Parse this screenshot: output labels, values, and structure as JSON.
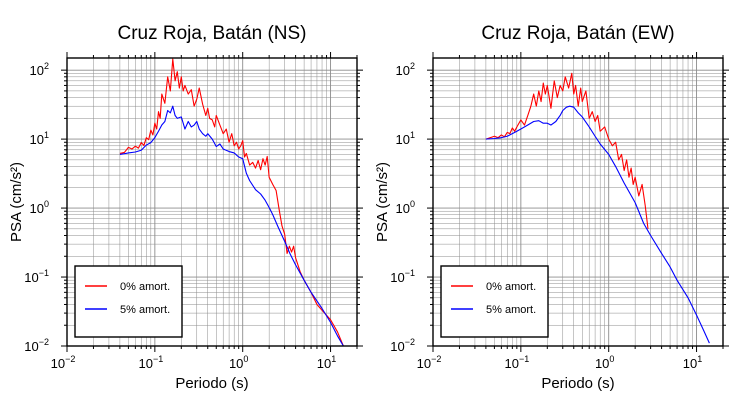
{
  "chart_data": [
    {
      "type": "line",
      "title": "Cruz Roja, Batán (NS)",
      "xlabel": "Periodo (s)",
      "ylabel": "PSA (cm/s²)",
      "xscale": "log",
      "yscale": "log",
      "xlim": [
        0.01,
        20
      ],
      "ylim": [
        0.01,
        150
      ],
      "grid": true,
      "legend_position": "bottom-left",
      "xticks": [
        {
          "base": "10",
          "exp": "−2"
        },
        {
          "base": "10",
          "exp": "−1"
        },
        {
          "base": "10",
          "exp": "0"
        },
        {
          "base": "10",
          "exp": "1"
        }
      ],
      "yticks": [
        {
          "base": "10",
          "exp": "2"
        },
        {
          "base": "10",
          "exp": "1"
        },
        {
          "base": "10",
          "exp": "0"
        },
        {
          "base": "10",
          "exp": "−1"
        },
        {
          "base": "10",
          "exp": "−2"
        }
      ],
      "series": [
        {
          "name": "0% amort.",
          "color": "#ff0000",
          "points": [
            [
              0.04,
              6.2
            ],
            [
              0.045,
              6.4
            ],
            [
              0.05,
              7.6
            ],
            [
              0.055,
              7.2
            ],
            [
              0.06,
              7.9
            ],
            [
              0.065,
              7.4
            ],
            [
              0.07,
              8.9
            ],
            [
              0.075,
              8.1
            ],
            [
              0.08,
              10.5
            ],
            [
              0.085,
              9.8
            ],
            [
              0.09,
              13.5
            ],
            [
              0.095,
              11.5
            ],
            [
              0.1,
              17
            ],
            [
              0.105,
              14
            ],
            [
              0.11,
              25
            ],
            [
              0.115,
              20
            ],
            [
              0.12,
              45
            ],
            [
              0.13,
              33
            ],
            [
              0.14,
              80
            ],
            [
              0.15,
              50
            ],
            [
              0.16,
              145
            ],
            [
              0.17,
              70
            ],
            [
              0.18,
              95
            ],
            [
              0.19,
              55
            ],
            [
              0.2,
              80
            ],
            [
              0.21,
              50
            ],
            [
              0.22,
              60
            ],
            [
              0.24,
              45
            ],
            [
              0.26,
              52
            ],
            [
              0.28,
              30
            ],
            [
              0.3,
              38
            ],
            [
              0.32,
              55
            ],
            [
              0.35,
              32
            ],
            [
              0.38,
              22
            ],
            [
              0.4,
              28
            ],
            [
              0.42,
              20
            ],
            [
              0.45,
              19
            ],
            [
              0.48,
              15
            ],
            [
              0.5,
              22
            ],
            [
              0.55,
              16
            ],
            [
              0.6,
              12
            ],
            [
              0.65,
              14
            ],
            [
              0.7,
              9
            ],
            [
              0.75,
              12
            ],
            [
              0.8,
              8
            ],
            [
              0.85,
              9
            ],
            [
              0.9,
              7.2
            ],
            [
              0.95,
              8
            ],
            [
              1.0,
              9.5
            ],
            [
              1.05,
              5.5
            ],
            [
              1.1,
              6.2
            ],
            [
              1.2,
              4.2
            ],
            [
              1.3,
              4.6
            ],
            [
              1.4,
              3.8
            ],
            [
              1.5,
              4.9
            ],
            [
              1.6,
              3.6
            ],
            [
              1.7,
              5.2
            ],
            [
              1.8,
              4.2
            ],
            [
              1.9,
              5.6
            ],
            [
              2.0,
              2.8
            ],
            [
              2.2,
              2.2
            ],
            [
              2.4,
              1.8
            ],
            [
              2.6,
              0.95
            ],
            [
              2.8,
              0.55
            ],
            [
              3.0,
              0.42
            ],
            [
              3.2,
              0.22
            ],
            [
              3.4,
              0.28
            ],
            [
              3.6,
              0.23
            ],
            [
              3.8,
              0.28
            ],
            [
              4.0,
              0.19
            ],
            [
              4.5,
              0.12
            ],
            [
              5.0,
              0.09
            ],
            [
              6.0,
              0.06
            ],
            [
              7.0,
              0.04
            ],
            [
              8.0,
              0.033
            ],
            [
              10.0,
              0.024
            ],
            [
              12.0,
              0.016
            ],
            [
              14.0,
              0.01
            ]
          ]
        },
        {
          "name": "5% amort.",
          "color": "#0000ff",
          "points": [
            [
              0.04,
              6.0
            ],
            [
              0.05,
              6.3
            ],
            [
              0.06,
              6.5
            ],
            [
              0.07,
              6.9
            ],
            [
              0.08,
              8.2
            ],
            [
              0.09,
              8.9
            ],
            [
              0.1,
              10.5
            ],
            [
              0.11,
              13
            ],
            [
              0.12,
              16
            ],
            [
              0.13,
              18
            ],
            [
              0.14,
              26
            ],
            [
              0.15,
              24
            ],
            [
              0.16,
              30
            ],
            [
              0.17,
              22
            ],
            [
              0.18,
              20
            ],
            [
              0.2,
              21
            ],
            [
              0.22,
              14
            ],
            [
              0.24,
              18
            ],
            [
              0.26,
              15
            ],
            [
              0.28,
              16
            ],
            [
              0.3,
              18
            ],
            [
              0.32,
              14
            ],
            [
              0.35,
              12
            ],
            [
              0.38,
              11
            ],
            [
              0.4,
              12
            ],
            [
              0.45,
              10
            ],
            [
              0.5,
              7.8
            ],
            [
              0.55,
              8.5
            ],
            [
              0.6,
              7.2
            ],
            [
              0.7,
              6.6
            ],
            [
              0.8,
              6.3
            ],
            [
              0.9,
              5.5
            ],
            [
              1.0,
              5.2
            ],
            [
              1.1,
              3.2
            ],
            [
              1.2,
              2.5
            ],
            [
              1.4,
              1.85
            ],
            [
              1.6,
              1.6
            ],
            [
              1.8,
              1.3
            ],
            [
              2.0,
              1.02
            ],
            [
              2.2,
              0.8
            ],
            [
              2.5,
              0.55
            ],
            [
              3.0,
              0.33
            ],
            [
              3.5,
              0.21
            ],
            [
              4.0,
              0.15
            ],
            [
              5.0,
              0.09
            ],
            [
              6.0,
              0.06
            ],
            [
              8.0,
              0.035
            ],
            [
              10.0,
              0.022
            ],
            [
              12.0,
              0.014
            ],
            [
              14.0,
              0.01
            ]
          ]
        }
      ]
    },
    {
      "type": "line",
      "title": "Cruz Roja, Batán (EW)",
      "xlabel": "Periodo (s)",
      "ylabel": "PSA (cm/s²)",
      "xscale": "log",
      "yscale": "log",
      "xlim": [
        0.01,
        20
      ],
      "ylim": [
        0.01,
        150
      ],
      "grid": true,
      "legend_position": "bottom-left",
      "xticks": [
        {
          "base": "10",
          "exp": "−2"
        },
        {
          "base": "10",
          "exp": "−1"
        },
        {
          "base": "10",
          "exp": "0"
        },
        {
          "base": "10",
          "exp": "1"
        }
      ],
      "yticks": [
        {
          "base": "10",
          "exp": "2"
        },
        {
          "base": "10",
          "exp": "1"
        },
        {
          "base": "10",
          "exp": "0"
        },
        {
          "base": "10",
          "exp": "−1"
        },
        {
          "base": "10",
          "exp": "−2"
        }
      ],
      "series": [
        {
          "name": "0% amort.",
          "color": "#ff0000",
          "points": [
            [
              0.04,
              10
            ],
            [
              0.045,
              10.5
            ],
            [
              0.05,
              11
            ],
            [
              0.055,
              10.5
            ],
            [
              0.06,
              11.5
            ],
            [
              0.065,
              10.8
            ],
            [
              0.07,
              12.5
            ],
            [
              0.075,
              12
            ],
            [
              0.08,
              14.5
            ],
            [
              0.085,
              13
            ],
            [
              0.09,
              15
            ],
            [
              0.1,
              19
            ],
            [
              0.11,
              16
            ],
            [
              0.12,
              22
            ],
            [
              0.13,
              30
            ],
            [
              0.14,
              45
            ],
            [
              0.15,
              30
            ],
            [
              0.16,
              50
            ],
            [
              0.17,
              35
            ],
            [
              0.18,
              65
            ],
            [
              0.19,
              45
            ],
            [
              0.2,
              60
            ],
            [
              0.22,
              28
            ],
            [
              0.24,
              70
            ],
            [
              0.26,
              40
            ],
            [
              0.28,
              60
            ],
            [
              0.3,
              50
            ],
            [
              0.32,
              80
            ],
            [
              0.35,
              55
            ],
            [
              0.38,
              90
            ],
            [
              0.4,
              45
            ],
            [
              0.42,
              60
            ],
            [
              0.45,
              30
            ],
            [
              0.48,
              55
            ],
            [
              0.5,
              35
            ],
            [
              0.55,
              50
            ],
            [
              0.6,
              20
            ],
            [
              0.65,
              25
            ],
            [
              0.7,
              18
            ],
            [
              0.75,
              22
            ],
            [
              0.8,
              13
            ],
            [
              0.9,
              15
            ],
            [
              1.0,
              10
            ],
            [
              1.1,
              8
            ],
            [
              1.2,
              9
            ],
            [
              1.3,
              5
            ],
            [
              1.4,
              6
            ],
            [
              1.5,
              3.5
            ],
            [
              1.6,
              5
            ],
            [
              1.7,
              2.8
            ],
            [
              1.8,
              3.8
            ],
            [
              1.9,
              2.2
            ],
            [
              2.0,
              2.8
            ],
            [
              2.2,
              1.5
            ],
            [
              2.4,
              2.2
            ],
            [
              2.6,
              1.1
            ],
            [
              2.8,
              0.5
            ]
          ]
        },
        {
          "name": "5% amort.",
          "color": "#0000ff",
          "points": [
            [
              0.04,
              10
            ],
            [
              0.05,
              10.2
            ],
            [
              0.06,
              10.5
            ],
            [
              0.07,
              11
            ],
            [
              0.08,
              12
            ],
            [
              0.09,
              13
            ],
            [
              0.1,
              14
            ],
            [
              0.12,
              16
            ],
            [
              0.14,
              18
            ],
            [
              0.16,
              18.5
            ],
            [
              0.18,
              17
            ],
            [
              0.2,
              17
            ],
            [
              0.22,
              16
            ],
            [
              0.25,
              18
            ],
            [
              0.28,
              22
            ],
            [
              0.3,
              26
            ],
            [
              0.33,
              29
            ],
            [
              0.36,
              30
            ],
            [
              0.4,
              29
            ],
            [
              0.45,
              24
            ],
            [
              0.5,
              21
            ],
            [
              0.6,
              15
            ],
            [
              0.7,
              11
            ],
            [
              0.8,
              8.5
            ],
            [
              1.0,
              6
            ],
            [
              1.2,
              4
            ],
            [
              1.5,
              2.3
            ],
            [
              2.0,
              1.2
            ],
            [
              2.5,
              0.6
            ],
            [
              3.0,
              0.4
            ],
            [
              4.0,
              0.22
            ],
            [
              5.0,
              0.14
            ],
            [
              6.0,
              0.09
            ],
            [
              8.0,
              0.05
            ],
            [
              10.0,
              0.028
            ],
            [
              12.0,
              0.017
            ],
            [
              14.0,
              0.011
            ]
          ]
        }
      ]
    }
  ]
}
